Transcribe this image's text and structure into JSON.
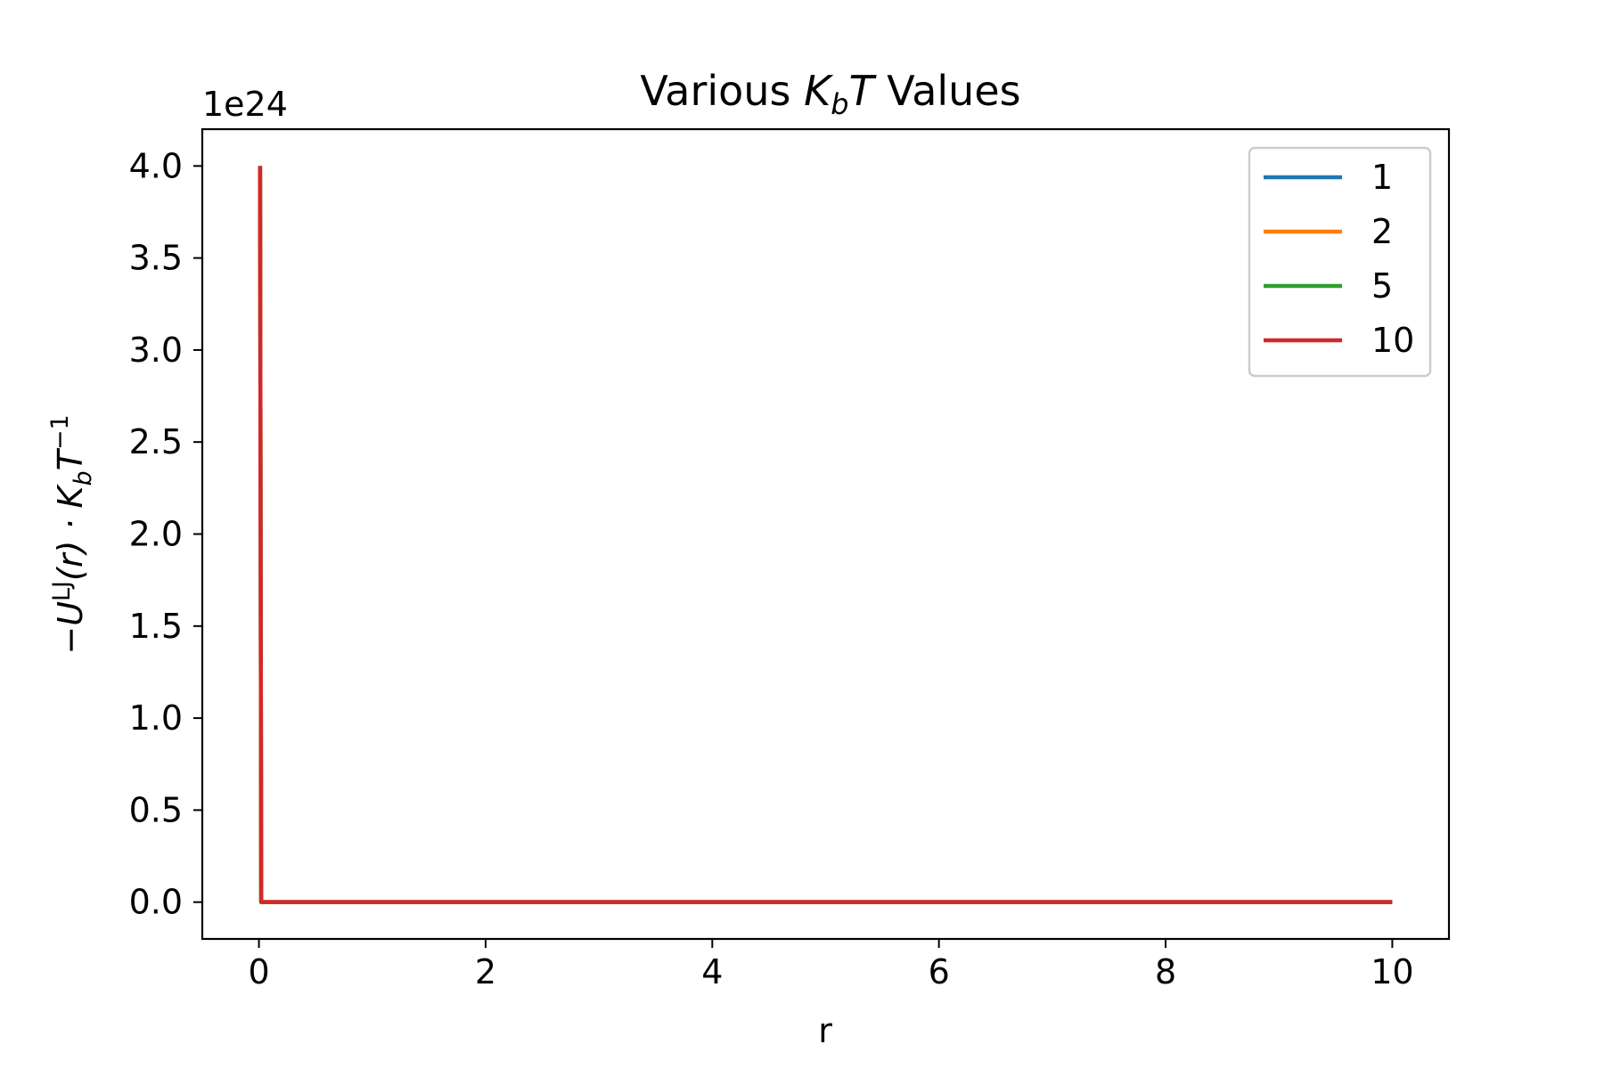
{
  "chart_data": {
    "type": "line",
    "title_text_pre": "Various ",
    "title_math_k": "K",
    "title_math_sub": "b",
    "title_math_t": "T",
    "title_text_post": " Values",
    "xlabel": "r",
    "ylabel_parts": {
      "minus_u": "−U",
      "sup_lj": "LJ",
      "paren_r": "(r) · K",
      "sub_b": "b",
      "t": "T",
      "sup_neg1": "−1"
    },
    "y_offset_label": "1e24",
    "xlim": [
      -0.5,
      10.5
    ],
    "ylim": [
      -0.2,
      4.2
    ],
    "x_ticks": [
      0,
      2,
      4,
      6,
      8,
      10
    ],
    "x_tick_labels": [
      "0",
      "2",
      "4",
      "6",
      "8",
      "10"
    ],
    "y_ticks": [
      0.0,
      0.5,
      1.0,
      1.5,
      2.0,
      2.5,
      3.0,
      3.5,
      4.0
    ],
    "y_tick_labels": [
      "0.0",
      "0.5",
      "1.0",
      "1.5",
      "2.0",
      "2.5",
      "3.0",
      "3.5",
      "4.0"
    ],
    "grid": false,
    "legend_position": "top-right",
    "series": [
      {
        "name": "1",
        "color": "#1f77b4",
        "x": [
          0.01,
          0.02,
          10
        ],
        "y": [
          4.0,
          0.0,
          0.0
        ]
      },
      {
        "name": "2",
        "color": "#ff7f0e",
        "x": [
          0.01,
          0.02,
          10
        ],
        "y": [
          4.0,
          0.0,
          0.0
        ]
      },
      {
        "name": "5",
        "color": "#2ca02c",
        "x": [
          0.01,
          0.02,
          10
        ],
        "y": [
          4.0,
          0.0,
          0.0
        ]
      },
      {
        "name": "10",
        "color": "#d62728",
        "x": [
          0.01,
          0.02,
          10
        ],
        "y": [
          4.0,
          0.0,
          0.0
        ]
      }
    ]
  }
}
